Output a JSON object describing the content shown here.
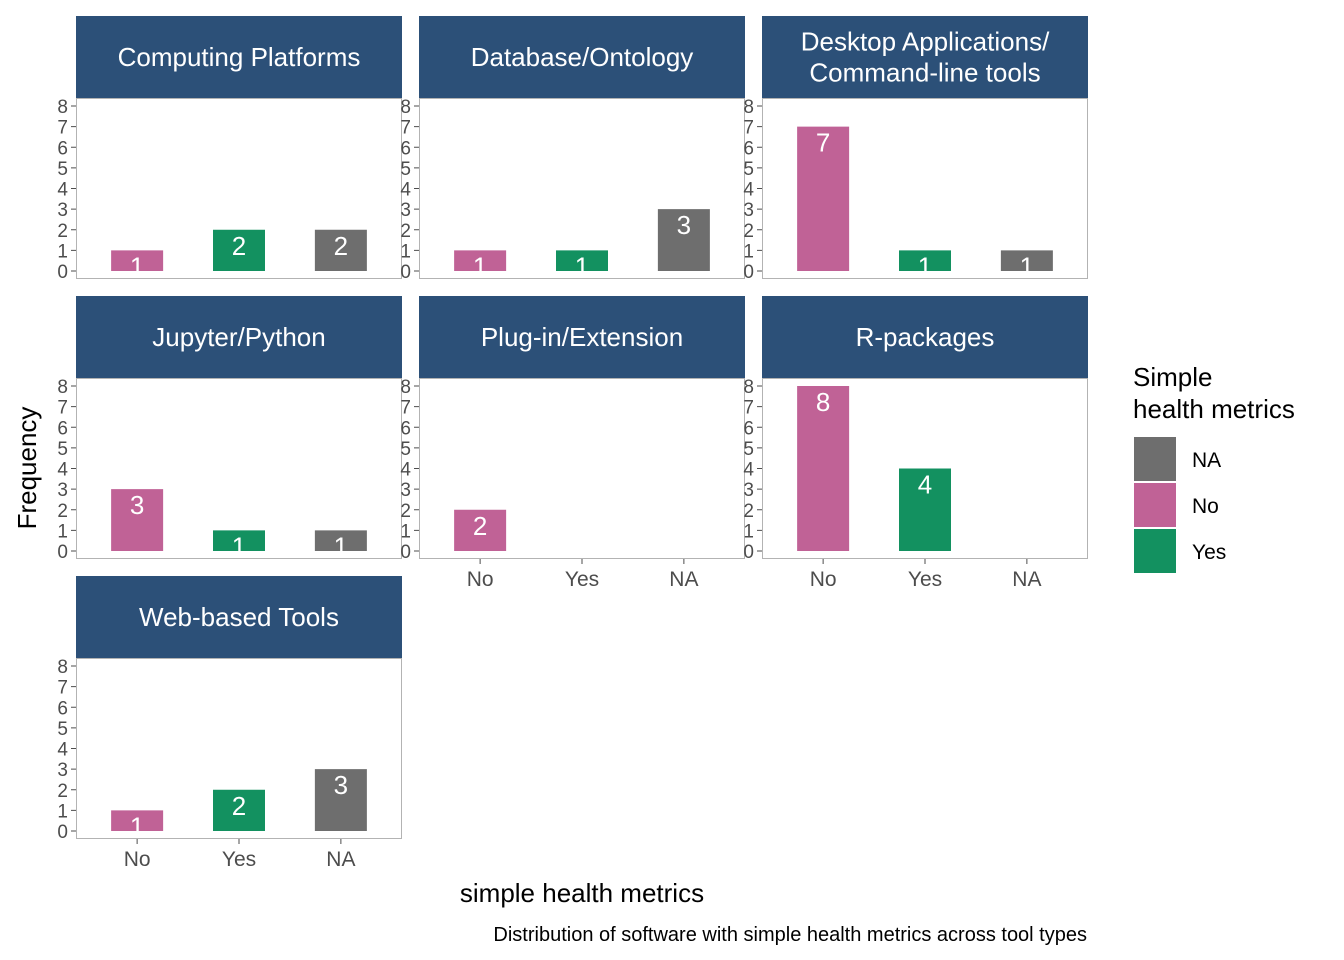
{
  "chart_data": {
    "type": "bar",
    "ylabel": "Frequency",
    "xlabel": "simple health metrics",
    "caption": "Distribution of software with simple health metrics across tool types",
    "categories": [
      "No",
      "Yes",
      "NA"
    ],
    "yticks": [
      "0",
      "1",
      "2",
      "3",
      "4",
      "5",
      "6",
      "7",
      "8"
    ],
    "ylim": [
      0,
      8
    ],
    "colors": {
      "No": "#C06296",
      "Yes": "#139160",
      "NA": "#6E6E6E"
    },
    "strip_color": "#2C5078",
    "legend": {
      "title": [
        "Simple",
        "health metrics"
      ],
      "position": "right",
      "items": [
        {
          "key": "NA",
          "label": "NA"
        },
        {
          "key": "No",
          "label": "No"
        },
        {
          "key": "Yes",
          "label": "Yes"
        }
      ]
    },
    "panels": [
      {
        "title": [
          "Computing Platforms"
        ],
        "values": {
          "No": 1,
          "Yes": 2,
          "NA": 2
        }
      },
      {
        "title": [
          "Database/Ontology"
        ],
        "values": {
          "No": 1,
          "Yes": 1,
          "NA": 3
        }
      },
      {
        "title": [
          "Desktop Applications/",
          "Command-line tools"
        ],
        "values": {
          "No": 7,
          "Yes": 1,
          "NA": 1
        }
      },
      {
        "title": [
          "Jupyter/Python"
        ],
        "values": {
          "No": 3,
          "Yes": 1,
          "NA": 1
        }
      },
      {
        "title": [
          "Plug-in/Extension"
        ],
        "values": {
          "No": 2,
          "Yes": null,
          "NA": null
        }
      },
      {
        "title": [
          "R-packages"
        ],
        "values": {
          "No": 8,
          "Yes": 4,
          "NA": null
        }
      },
      {
        "title": [
          "Web-based Tools"
        ],
        "values": {
          "No": 1,
          "Yes": 2,
          "NA": 3
        }
      }
    ]
  }
}
